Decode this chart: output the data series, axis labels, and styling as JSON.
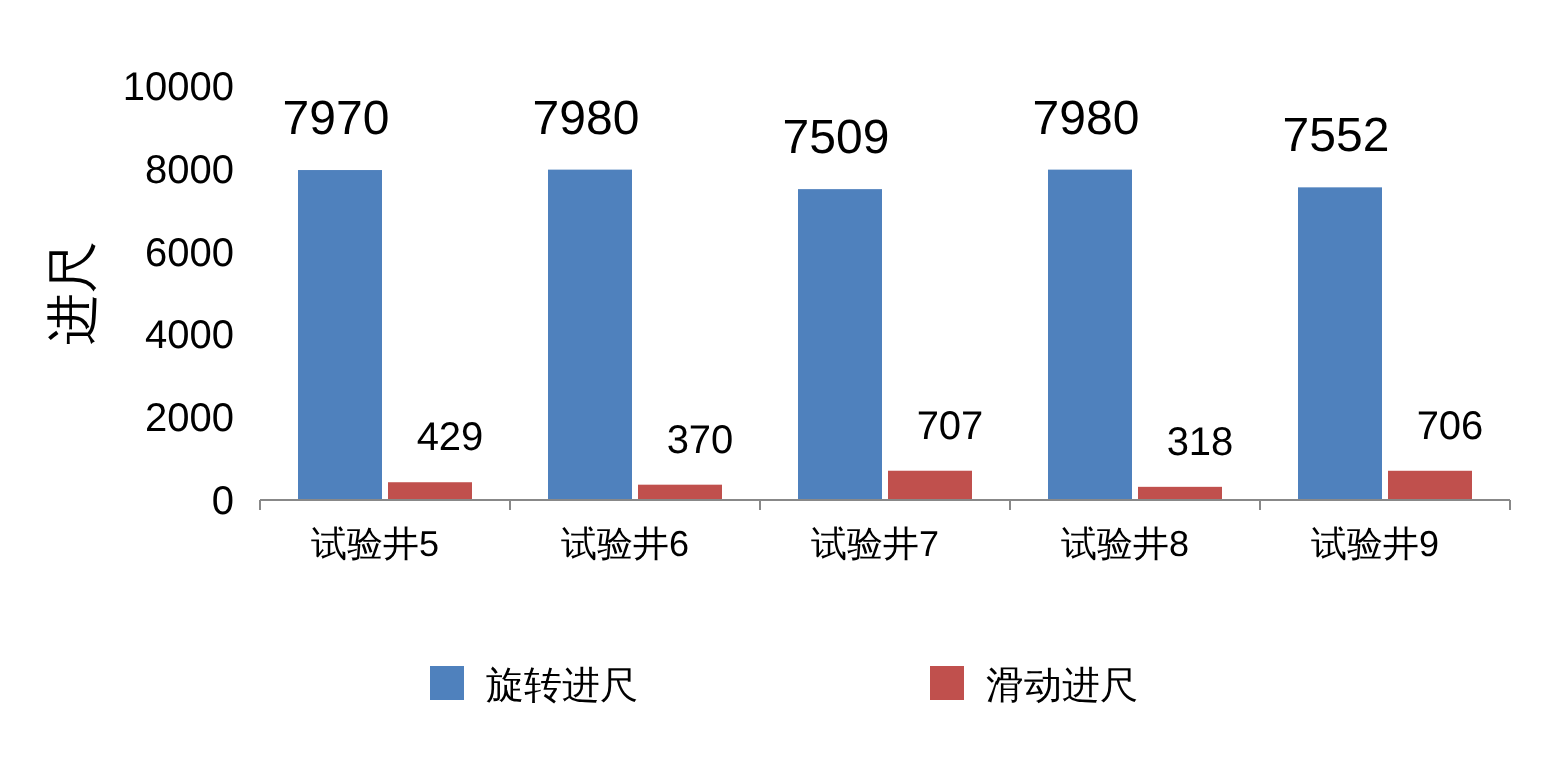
{
  "chart_data": {
    "type": "bar",
    "ylabel": "进尺",
    "categories": [
      "试验井5",
      "试验井6",
      "试验井7",
      "试验井8",
      "试验井9"
    ],
    "series": [
      {
        "name": "旋转进尺",
        "color": "#4f81bd",
        "values": [
          7970,
          7980,
          7509,
          7980,
          7552
        ]
      },
      {
        "name": "滑动进尺",
        "color": "#c0504d",
        "values": [
          429,
          370,
          707,
          318,
          706
        ]
      }
    ],
    "ylim": [
      0,
      10000
    ],
    "yticks": [
      0,
      2000,
      4000,
      6000,
      8000,
      10000
    ],
    "data_labels": true,
    "legend": "bottom",
    "grid": false
  }
}
